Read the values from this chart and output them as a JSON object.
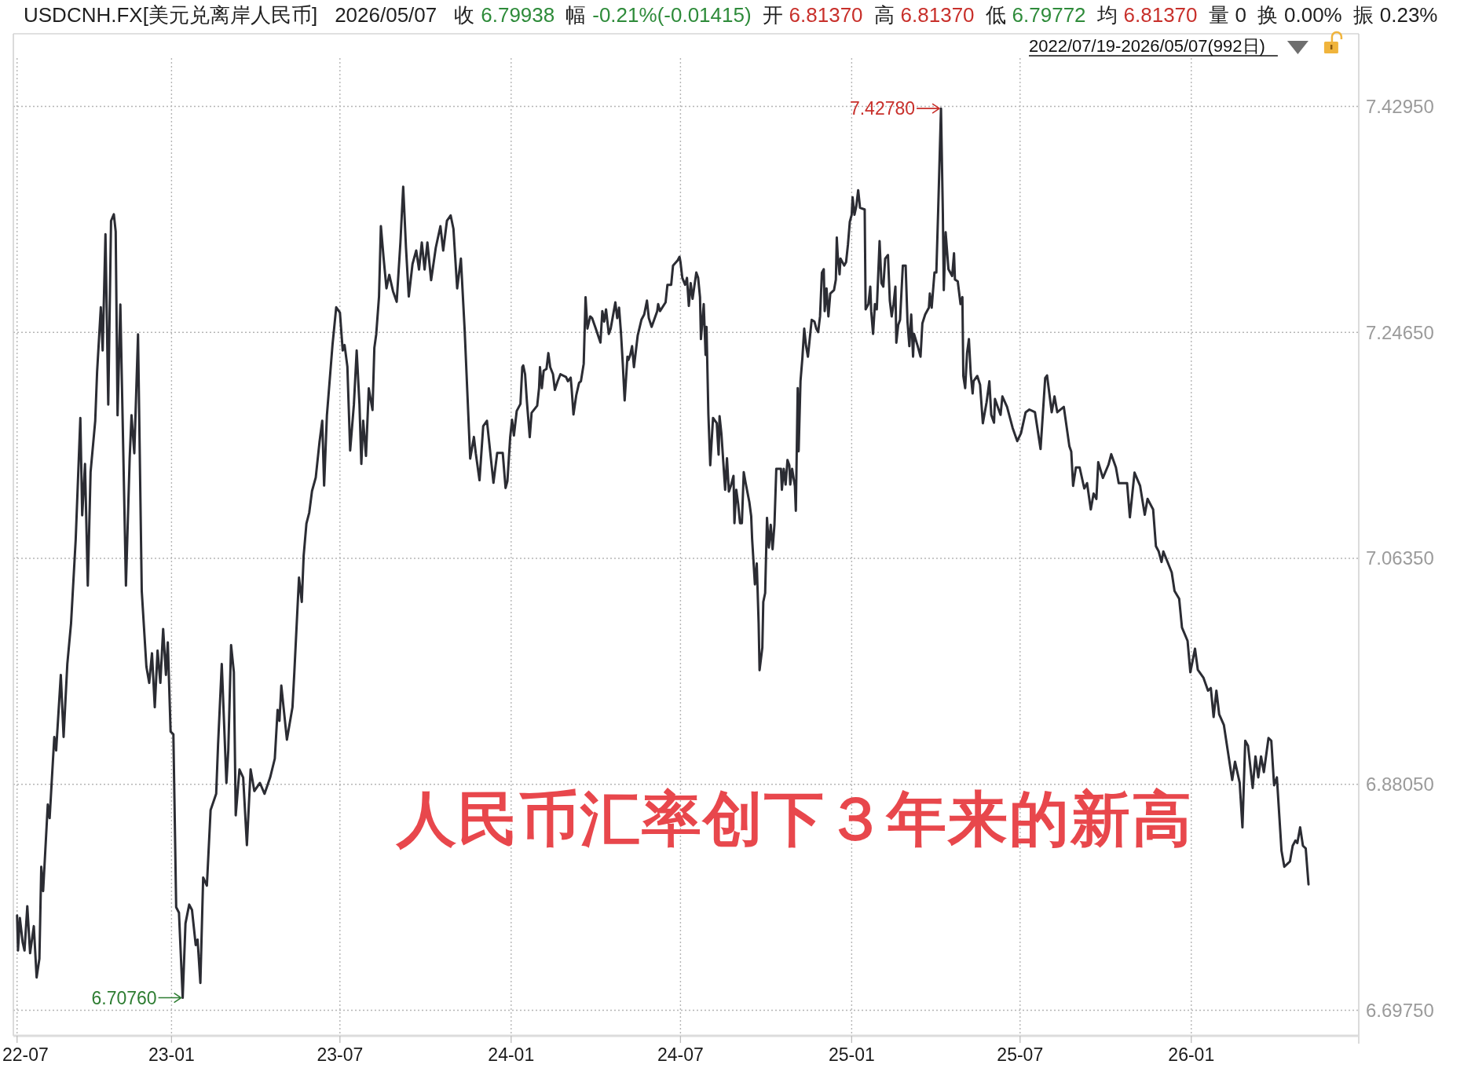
{
  "chart_data": {
    "type": "line",
    "title": "USDCNH.FX[美元兑离岸人民币]",
    "subtitle": "2022/07/19-2026/05/07(992日)",
    "x": [
      "2022-07-19",
      "2022-07-20",
      "2022-07-22",
      "2022-07-25",
      "2022-07-27",
      "2022-07-30",
      "2022-08-02",
      "2022-08-06",
      "2022-08-09",
      "2022-08-12",
      "2022-08-14",
      "2022-08-16",
      "2022-08-21",
      "2022-08-23",
      "2022-08-28",
      "2022-08-30",
      "2022-09-04",
      "2022-09-07",
      "2022-09-11",
      "2022-09-15",
      "2022-09-20",
      "2022-09-25",
      "2022-09-27",
      "2022-09-30",
      "2022-10-03",
      "2022-10-06",
      "2022-10-11",
      "2022-10-13",
      "2022-10-17",
      "2022-10-19",
      "2022-10-22",
      "2022-10-25",
      "2022-10-28",
      "2022-10-31",
      "2022-11-02",
      "2022-11-04",
      "2022-11-07",
      "2022-11-13",
      "2022-11-17",
      "2022-11-19",
      "2022-11-22",
      "2022-11-26",
      "2022-11-30",
      "2022-12-05",
      "2022-12-08",
      "2022-12-11",
      "2022-12-14",
      "2022-12-17",
      "2022-12-20",
      "2022-12-23",
      "2022-12-26",
      "2022-12-28",
      "2022-12-31",
      "2023-01-03",
      "2023-01-06",
      "2023-01-09",
      "2023-01-13",
      "2023-01-16",
      "2023-01-20",
      "2023-01-23",
      "2023-01-27",
      "2023-01-29",
      "2023-02-01",
      "2023-02-04",
      "2023-02-08",
      "2023-02-12",
      "2023-02-18",
      "2023-02-20",
      "2023-02-24",
      "2023-03-01",
      "2023-03-03",
      "2023-03-06",
      "2023-03-09",
      "2023-03-11",
      "2023-03-15",
      "2023-03-19",
      "2023-03-23",
      "2023-03-27",
      "2023-03-31",
      "2023-04-06",
      "2023-04-11",
      "2023-04-17",
      "2023-04-22",
      "2023-04-25",
      "2023-04-27",
      "2023-04-29",
      "2023-05-05",
      "2023-05-11",
      "2023-05-13",
      "2023-05-18",
      "2023-05-21",
      "2023-05-23",
      "2023-05-26",
      "2023-05-29",
      "2023-06-01",
      "2023-06-05",
      "2023-06-09",
      "2023-06-12",
      "2023-06-14",
      "2023-06-17",
      "2023-06-23",
      "2023-06-27",
      "2023-07-01",
      "2023-07-04",
      "2023-07-06",
      "2023-07-09",
      "2023-07-12",
      "2023-07-16",
      "2023-07-19",
      "2023-07-22",
      "2023-07-24",
      "2023-07-26",
      "2023-07-29",
      "2023-08-01",
      "2023-08-05",
      "2023-08-07",
      "2023-08-09",
      "2023-08-12",
      "2023-08-14",
      "2023-08-17",
      "2023-08-20",
      "2023-08-23",
      "2023-08-27",
      "2023-08-31",
      "2023-09-04",
      "2023-09-07",
      "2023-09-10",
      "2023-09-13",
      "2023-09-17",
      "2023-09-21",
      "2023-09-24",
      "2023-09-27",
      "2023-09-30",
      "2023-10-03",
      "2023-10-07",
      "2023-10-12",
      "2023-10-17",
      "2023-10-20",
      "2023-10-24",
      "2023-10-28",
      "2023-10-31",
      "2023-11-04",
      "2023-11-08",
      "2023-11-12",
      "2023-11-16",
      "2023-11-18",
      "2023-11-22",
      "2023-11-24",
      "2023-11-28",
      "2023-12-02",
      "2023-12-06",
      "2023-12-11",
      "2023-12-13",
      "2023-12-17",
      "2023-12-23",
      "2023-12-26",
      "2023-12-28",
      "2023-12-31",
      "2024-01-02",
      "2024-01-04",
      "2024-01-07",
      "2024-01-11",
      "2024-01-13",
      "2024-01-14",
      "2024-01-16",
      "2024-01-18",
      "2024-01-21",
      "2024-01-23",
      "2024-01-29",
      "2024-01-31",
      "2024-02-01",
      "2024-02-03",
      "2024-02-05",
      "2024-02-08",
      "2024-02-10",
      "2024-02-12",
      "2024-02-15",
      "2024-02-17",
      "2024-02-20",
      "2024-02-23",
      "2024-02-29",
      "2024-03-02",
      "2024-03-05",
      "2024-03-06",
      "2024-03-08",
      "2024-03-11",
      "2024-03-14",
      "2024-03-16",
      "2024-03-19",
      "2024-03-21",
      "2024-03-23",
      "2024-03-26",
      "2024-03-28",
      "2024-04-01",
      "2024-04-06",
      "2024-04-08",
      "2024-04-10",
      "2024-04-12",
      "2024-04-15",
      "2024-04-17",
      "2024-04-19",
      "2024-04-22",
      "2024-04-24",
      "2024-04-26",
      "2024-04-28",
      "2024-04-30",
      "2024-05-02",
      "2024-05-05",
      "2024-05-06",
      "2024-05-08",
      "2024-05-10",
      "2024-05-12",
      "2024-05-16",
      "2024-05-20",
      "2024-05-23",
      "2024-05-26",
      "2024-05-28",
      "2024-05-31",
      "2024-06-06",
      "2024-06-07",
      "2024-06-09",
      "2024-06-15",
      "2024-06-17",
      "2024-06-21",
      "2024-06-23",
      "2024-06-28",
      "2024-06-30",
      "2024-07-01",
      "2024-07-03",
      "2024-07-06",
      "2024-07-08",
      "2024-07-10",
      "2024-07-12",
      "2024-07-14",
      "2024-07-18",
      "2024-07-20",
      "2024-07-22",
      "2024-07-23",
      "2024-07-26",
      "2024-07-28",
      "2024-07-29",
      "2024-07-31",
      "2024-08-02",
      "2024-08-05",
      "2024-08-09",
      "2024-08-11",
      "2024-08-12",
      "2024-08-14",
      "2024-08-18",
      "2024-08-20",
      "2024-08-22",
      "2024-08-24",
      "2024-08-27",
      "2024-08-28",
      "2024-08-30",
      "2024-09-01",
      "2024-09-03",
      "2024-09-05",
      "2024-09-07",
      "2024-09-09",
      "2024-09-13",
      "2024-09-15",
      "2024-09-16",
      "2024-09-19",
      "2024-09-21",
      "2024-09-23",
      "2024-09-24",
      "2024-09-27",
      "2024-09-28",
      "2024-09-30",
      "2024-10-02",
      "2024-10-04",
      "2024-10-06",
      "2024-10-08",
      "2024-10-10",
      "2024-10-12",
      "2024-10-17",
      "2024-10-18",
      "2024-10-20",
      "2024-10-22",
      "2024-10-24",
      "2024-10-26",
      "2024-10-27",
      "2024-10-29",
      "2024-11-01",
      "2024-11-02",
      "2024-11-04",
      "2024-11-05",
      "2024-11-07",
      "2024-11-09",
      "2024-11-11",
      "2024-11-13",
      "2024-11-15",
      "2024-11-19",
      "2024-11-22",
      "2024-11-24",
      "2024-11-26",
      "2024-11-28",
      "2024-11-30",
      "2024-12-02",
      "2024-12-03",
      "2024-12-05",
      "2024-12-07",
      "2024-12-09",
      "2024-12-13",
      "2024-12-15",
      "2024-12-16",
      "2024-12-17",
      "2024-12-19",
      "2024-12-20",
      "2024-12-24",
      "2024-12-26",
      "2024-12-28",
      "2024-12-30",
      "2025-01-01",
      "2025-01-02",
      "2025-01-04",
      "2025-01-06",
      "2025-01-08",
      "2025-01-10",
      "2025-01-15",
      "2025-01-16",
      "2025-01-19",
      "2025-01-21",
      "2025-01-22",
      "2025-01-24",
      "2025-01-26",
      "2025-01-28",
      "2025-01-31",
      "2025-02-02",
      "2025-02-04",
      "2025-02-06",
      "2025-02-09",
      "2025-02-11",
      "2025-02-13",
      "2025-02-15",
      "2025-02-17",
      "2025-02-18",
      "2025-02-20",
      "2025-02-22",
      "2025-02-25",
      "2025-02-28",
      "2025-03-02",
      "2025-03-04",
      "2025-03-06",
      "2025-03-08",
      "2025-03-09",
      "2025-03-13",
      "2025-03-16",
      "2025-03-18",
      "2025-03-21",
      "2025-03-25",
      "2025-03-26",
      "2025-03-28",
      "2025-03-31",
      "2025-04-02",
      "2025-04-04",
      "2025-04-07",
      "2025-04-09",
      "2025-04-10",
      "2025-04-12",
      "2025-04-15",
      "2025-04-19",
      "2025-04-21",
      "2025-04-22",
      "2025-04-25",
      "2025-04-28",
      "2025-04-30",
      "2025-05-01",
      "2025-05-03",
      "2025-05-05",
      "2025-05-07",
      "2025-05-09",
      "2025-05-11",
      "2025-05-12",
      "2025-05-16",
      "2025-05-19",
      "2025-05-22",
      "2025-05-26",
      "2025-05-29",
      "2025-05-31",
      "2025-06-03",
      "2025-06-04",
      "2025-06-10",
      "2025-06-12",
      "2025-06-17",
      "2025-06-23",
      "2025-06-28",
      "2025-07-02",
      "2025-07-07",
      "2025-07-11",
      "2025-07-17",
      "2025-07-23",
      "2025-07-28",
      "2025-07-30",
      "2025-08-04",
      "2025-08-07",
      "2025-08-10",
      "2025-08-17",
      "2025-08-23",
      "2025-08-25",
      "2025-08-27",
      "2025-08-30",
      "2025-09-03",
      "2025-09-08",
      "2025-09-11",
      "2025-09-15",
      "2025-09-18",
      "2025-09-21",
      "2025-09-23",
      "2025-09-28",
      "2025-10-04",
      "2025-10-07",
      "2025-10-12",
      "2025-10-15",
      "2025-10-24",
      "2025-10-27",
      "2025-11-01",
      "2025-11-07",
      "2025-11-12",
      "2025-11-15",
      "2025-11-21",
      "2025-11-24",
      "2025-11-27",
      "2025-11-30",
      "2025-12-02",
      "2025-12-11",
      "2025-12-14",
      "2025-12-19",
      "2025-12-22",
      "2025-12-28",
      "2025-12-31",
      "2026-01-05",
      "2026-01-08",
      "2026-01-14",
      "2026-01-19",
      "2026-01-22",
      "2026-01-25",
      "2026-01-28",
      "2026-01-31",
      "2026-02-05",
      "2026-02-08",
      "2026-02-14",
      "2026-02-17",
      "2026-02-22",
      "2026-02-25",
      "2026-02-28",
      "2026-03-03",
      "2026-03-08",
      "2026-03-11",
      "2026-03-14",
      "2026-03-17",
      "2026-03-20",
      "2026-03-25",
      "2026-03-28",
      "2026-03-31",
      "2026-04-03",
      "2026-04-08",
      "2026-04-11",
      "2026-04-14",
      "2026-04-17",
      "2026-04-20",
      "2026-04-23",
      "2026-04-25",
      "2026-04-28",
      "2026-05-01",
      "2026-05-04",
      "2026-05-07"
    ],
    "series": [
      {
        "color": "#2b2c33",
        "values": [
          6.7743,
          6.7459,
          6.7722,
          6.7525,
          6.7459,
          6.7818,
          6.7437,
          6.7656,
          6.724,
          6.7393,
          6.8137,
          6.794,
          6.8641,
          6.8531,
          6.9188,
          6.9079,
          6.9691,
          6.9188,
          6.9779,
          7.0107,
          7.0786,
          7.1771,
          7.0983,
          7.1399,
          7.0414,
          7.1333,
          7.1749,
          7.2143,
          7.2668,
          7.2318,
          7.3259,
          7.188,
          7.3368,
          7.3421,
          7.3281,
          7.1793,
          7.269,
          7.0414,
          7.1442,
          7.1793,
          7.1486,
          7.2449,
          7.037,
          6.9757,
          6.9626,
          6.9866,
          6.9429,
          6.9888,
          6.9626,
          7.0063,
          6.9691,
          6.9954,
          6.9232,
          6.921,
          6.7809,
          6.7765,
          6.7076,
          6.7678,
          6.7831,
          6.7787,
          6.7503,
          6.7547,
          6.7196,
          6.805,
          6.7984,
          6.8597,
          6.8728,
          6.9122,
          6.9779,
          6.8816,
          6.9079,
          6.9932,
          6.9713,
          6.8553,
          6.8925,
          6.886,
          6.8312,
          6.8925,
          6.875,
          6.8816,
          6.8728,
          6.886,
          6.9013,
          6.9407,
          6.9319,
          6.9604,
          6.9166,
          6.9429,
          6.9713,
          7.0479,
          7.0282,
          7.0654,
          7.0917,
          7.1005,
          7.118,
          7.1289,
          7.1574,
          7.1749,
          7.1224,
          7.1793,
          7.2362,
          7.2668,
          7.2624,
          7.2318,
          7.2362,
          7.2187,
          7.1508,
          7.188,
          7.2318,
          7.188,
          7.1399,
          7.1749,
          7.1464,
          7.2011,
          7.1836,
          7.234,
          7.2449,
          7.2755,
          7.3325,
          7.3062,
          7.2821,
          7.2931,
          7.2799,
          7.2712,
          7.3193,
          7.3645,
          7.315,
          7.2755,
          7.3018,
          7.3128,
          7.2974,
          7.3193,
          7.2974,
          7.3193,
          7.2887,
          7.315,
          7.3325,
          7.3128,
          7.3368,
          7.3412,
          7.3303,
          7.2821,
          7.3062,
          7.2493,
          7.1793,
          7.1442,
          7.1618,
          7.1486,
          7.1267,
          7.1705,
          7.1749,
          7.1389,
          7.1247,
          7.1488,
          7.1488,
          7.1204,
          7.1261,
          7.1616,
          7.1757,
          7.163,
          7.1828,
          7.1885,
          7.2183,
          7.2197,
          7.2126,
          7.1899,
          7.1616,
          7.1814,
          7.1871,
          7.2013,
          7.2183,
          7.2013,
          7.2155,
          7.2169,
          7.2297,
          7.2183,
          7.2126,
          7.1999,
          7.2069,
          7.2126,
          7.2103,
          7.2069,
          7.2098,
          7.2013,
          7.18,
          7.1956,
          7.2055,
          7.2069,
          7.2211,
          7.275,
          7.2495,
          7.2594,
          7.258,
          7.2495,
          7.2382,
          7.2637,
          7.2552,
          7.2651,
          7.2452,
          7.2495,
          7.258,
          7.2708,
          7.258,
          7.2665,
          7.2467,
          7.2211,
          7.1913,
          7.2268,
          7.224,
          7.2282,
          7.2353,
          7.2183,
          7.2438,
          7.2566,
          7.2609,
          7.2722,
          7.258,
          7.2509,
          7.2637,
          7.2694,
          7.2637,
          7.2708,
          7.285,
          7.285,
          7.3006,
          7.3048,
          7.3077,
          7.3034,
          7.2906,
          7.285,
          7.2906,
          7.2679,
          7.2864,
          7.2736,
          7.2949,
          7.2906,
          7.275,
          7.241,
          7.2694,
          7.2282,
          7.2509,
          7.18,
          7.1389,
          7.1772,
          7.1729,
          7.1474,
          7.1786,
          7.1644,
          7.119,
          7.1445,
          7.1176,
          7.1218,
          7.1303,
          7.092,
          7.119,
          7.1076,
          7.092,
          7.092,
          7.1332,
          7.1247,
          7.1091,
          7.0977,
          7.0793,
          7.0424,
          7.0594,
          7.0112,
          6.9729,
          6.9913,
          7.0282,
          7.0353,
          7.0963,
          7.0722,
          7.0906,
          7.0708,
          7.0906,
          7.136,
          7.136,
          7.119,
          7.136,
          7.1232,
          7.1431,
          7.1389,
          7.1232,
          7.136,
          7.1218,
          7.102,
          7.2013,
          7.1502,
          7.2069,
          7.2254,
          7.2495,
          7.2353,
          7.2268,
          7.2566,
          7.2552,
          7.2495,
          7.2467,
          7.2594,
          7.2949,
          7.2977,
          7.2637,
          7.2821,
          7.2594,
          7.2779,
          7.2807,
          7.2892,
          7.3233,
          7.3091,
          7.2935,
          7.3062,
          7.3006,
          7.3034,
          7.3176,
          7.336,
          7.3417,
          7.3559,
          7.3417,
          7.3488,
          7.3616,
          7.3474,
          7.346,
          7.2651,
          7.2694,
          7.2835,
          7.2637,
          7.2452,
          7.2694,
          7.2651,
          7.3204,
          7.2864,
          7.2835,
          7.3062,
          7.3091,
          7.2722,
          7.2594,
          7.2694,
          7.2835,
          7.2381,
          7.2523,
          7.2566,
          7.3006,
          7.3006,
          7.2552,
          7.2353,
          7.2609,
          7.2268,
          7.2452,
          7.2353,
          7.2268,
          7.2538,
          7.2609,
          7.2665,
          7.2779,
          7.2665,
          7.2949,
          7.2949,
          7.346,
          7.4278,
          7.3431,
          7.2807,
          7.3275,
          7.2977,
          7.2921,
          7.3105,
          7.2892,
          7.2878,
          7.2694,
          7.275,
          7.2112,
          7.2013,
          7.2297,
          7.241,
          7.2126,
          7.197,
          7.2069,
          7.2112,
          7.2041,
          7.1729,
          7.1899,
          7.2069,
          7.1797,
          7.1733,
          7.1925,
          7.1797,
          7.1946,
          7.1861,
          7.1691,
          7.1584,
          7.1648,
          7.1818,
          7.184,
          7.1818,
          7.152,
          7.2095,
          7.2116,
          7.1818,
          7.1946,
          7.1818,
          7.1861,
          7.1542,
          7.1499,
          7.1222,
          7.1371,
          7.1371,
          7.1201,
          7.1244,
          7.1031,
          7.1159,
          7.1116,
          7.1414,
          7.1286,
          7.1393,
          7.1478,
          7.1371,
          7.1244,
          7.1244,
          7.0967,
          7.1329,
          7.1222,
          7.0988,
          7.1116,
          7.1031,
          7.0733,
          7.069,
          7.0605,
          7.069,
          7.052,
          7.0371,
          7.0307,
          7.0074,
          6.9967,
          6.9712,
          6.9903,
          6.9733,
          6.9669,
          6.9563,
          6.9584,
          6.935,
          6.9563,
          6.9371,
          6.9286,
          6.9137,
          6.8839,
          6.8988,
          6.8818,
          6.8456,
          6.9158,
          6.9116,
          6.8775,
          6.9031,
          6.8861,
          6.9031,
          6.8903,
          6.918,
          6.9158,
          6.8797,
          6.8861,
          6.8265,
          6.8137,
          6.8158,
          6.818,
          6.8307,
          6.835,
          6.8329,
          6.8456,
          6.8307,
          6.8286,
          6.7994
        ]
      }
    ],
    "xlim": [
      "2022-07-15",
      "2026-06-30"
    ],
    "xticks": [
      {
        "value": "2022-07-19",
        "label": "22-07"
      },
      {
        "value": "2023-01",
        "label": "23-01"
      },
      {
        "value": "2023-07",
        "label": "23-07"
      },
      {
        "value": "2024-01",
        "label": "24-01"
      },
      {
        "value": "2024-07",
        "label": "24-07"
      },
      {
        "value": "2025-01",
        "label": "25-01"
      },
      {
        "value": "2025-07",
        "label": "25-07"
      },
      {
        "value": "2026-01",
        "label": "26-01"
      }
    ],
    "ylim": [
      6.6768,
      7.4883
    ],
    "yticks": [
      {
        "value": 6.6975,
        "label": "6.69750"
      },
      {
        "value": 6.8805,
        "label": "6.88050"
      },
      {
        "value": 7.0635,
        "label": "7.06350"
      },
      {
        "value": 7.2465,
        "label": "7.24650"
      },
      {
        "value": 7.4295,
        "label": "7.42950"
      }
    ],
    "grid": true,
    "line_style": "solid",
    "annotations": [
      "人民币汇率创下３年来的新高",
      {
        "text": "7.42780",
        "x": "2025-04-07",
        "y": 7.4278
      },
      {
        "text": "6.70760",
        "x": "2023-01-13",
        "y": 6.7076
      },
      "2026/05/07",
      "收",
      "6.79938",
      "幅",
      "-0.21%(-0.01415)",
      "开",
      "6.81370",
      "高",
      "6.81370",
      "低",
      "6.79772",
      "均",
      "6.81370",
      "量",
      "0",
      "换",
      "0.00%",
      "振",
      "0.23%"
    ]
  }
}
